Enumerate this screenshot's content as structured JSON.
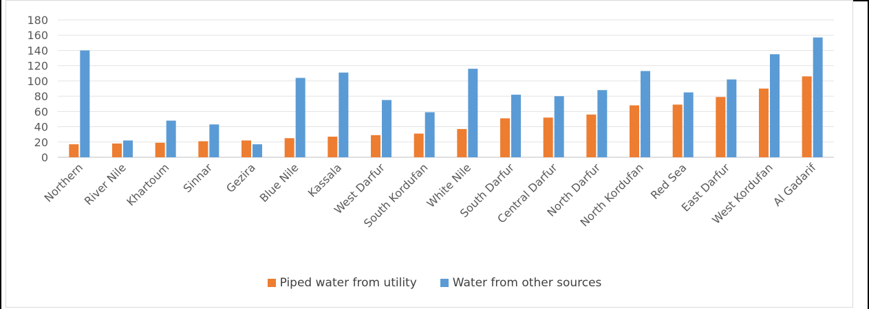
{
  "chart_data": {
    "type": "bar",
    "categories": [
      "Northern",
      "River Nile",
      "Khartoum",
      "Sinnar",
      "Gezira",
      "Blue Nile",
      "Kassala",
      "West Darfur",
      "South Kordufan",
      "White Nile",
      "South Darfur",
      "Central Darfur",
      "North Darfur",
      "North Kordufan",
      "Red Sea",
      "East Darfur",
      "West Kordufan",
      "Al Gadarif"
    ],
    "series": [
      {
        "name": "Piped water from utility",
        "color": "#ed7d31",
        "values": [
          17,
          18,
          19,
          21,
          22,
          25,
          27,
          29,
          31,
          37,
          51,
          52,
          56,
          68,
          69,
          79,
          90,
          106
        ]
      },
      {
        "name": "Water from other sources",
        "color": "#5b9bd5",
        "values": [
          140,
          22,
          48,
          43,
          17,
          104,
          111,
          75,
          59,
          116,
          82,
          80,
          88,
          113,
          85,
          102,
          135,
          157
        ]
      }
    ],
    "yticks": [
      "0",
      "20",
      "40",
      "60",
      "80",
      "100",
      "120",
      "140",
      "160",
      "180"
    ],
    "ylim": [
      0,
      180
    ],
    "grid": true,
    "legend": "bottom"
  }
}
